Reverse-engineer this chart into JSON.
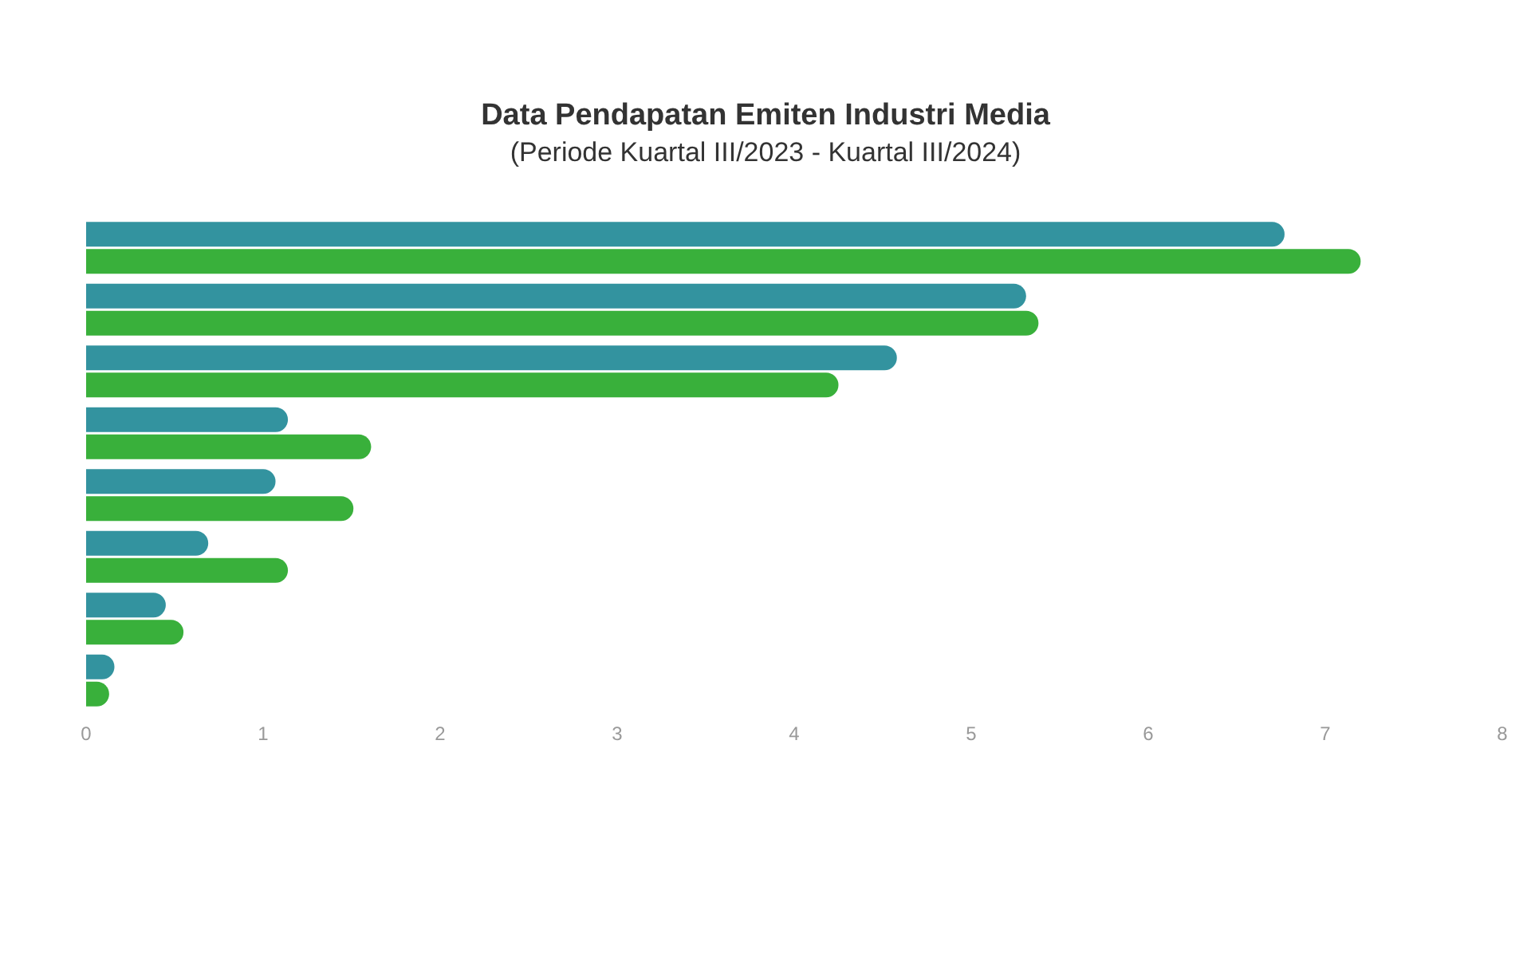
{
  "chart_data": {
    "type": "bar",
    "orientation": "horizontal",
    "title": "Data Pendapatan Emiten Industri Media",
    "subtitle": "(Periode Kuartal III/2023 - Kuartal III/2024)",
    "categories": [
      null,
      null,
      null,
      null,
      null,
      null,
      null,
      null
    ],
    "series": [
      {
        "color": "#33939f",
        "values": [
          6.77,
          5.31,
          4.58,
          1.14,
          1.07,
          0.69,
          0.45,
          0.16
        ]
      },
      {
        "color": "#39b03b",
        "values": [
          7.2,
          5.38,
          4.25,
          1.61,
          1.51,
          1.14,
          0.55,
          0.13
        ]
      }
    ],
    "xlim": [
      0,
      8
    ],
    "xticks": [
      0,
      1,
      2,
      3,
      4,
      5,
      6,
      7,
      8
    ]
  }
}
